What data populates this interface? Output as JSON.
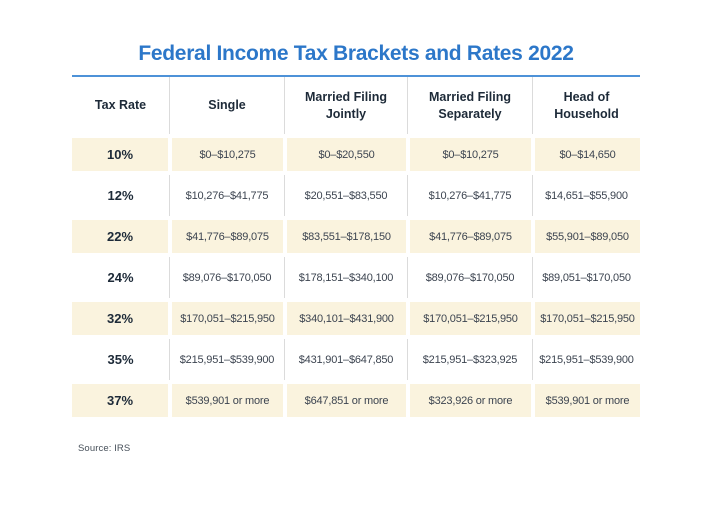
{
  "page": {
    "title": "Federal Income Tax Brackets and Rates 2022",
    "source_note": "Source: IRS"
  },
  "colors": {
    "title_blue": "#2C77C9",
    "rule_blue": "#4D92D8",
    "row_cream": "#FAF3DE",
    "grid_line": "#DBDBDB",
    "header_text": "#1D2A38",
    "cell_text": "#3C4450"
  },
  "table": {
    "columns": [
      "Tax Rate",
      "Single",
      "Married Filing Jointly",
      "Married Filing Separately",
      "Head of Household"
    ],
    "rows": [
      {
        "shaded": true,
        "cells": [
          "10%",
          "$0–$10,275",
          "$0–$20,550",
          "$0–$10,275",
          "$0–$14,650"
        ]
      },
      {
        "shaded": false,
        "cells": [
          "12%",
          "$10,276–$41,775",
          "$20,551–$83,550",
          "$10,276–$41,775",
          "$14,651–$55,900"
        ]
      },
      {
        "shaded": true,
        "cells": [
          "22%",
          "$41,776–$89,075",
          "$83,551–$178,150",
          "$41,776–$89,075",
          "$55,901–$89,050"
        ]
      },
      {
        "shaded": false,
        "cells": [
          "24%",
          "$89,076–$170,050",
          "$178,151–$340,100",
          "$89,076–$170,050",
          "$89,051–$170,050"
        ]
      },
      {
        "shaded": true,
        "cells": [
          "32%",
          "$170,051–$215,950",
          "$340,101–$431,900",
          "$170,051–$215,950",
          "$170,051–$215,950"
        ]
      },
      {
        "shaded": false,
        "cells": [
          "35%",
          "$215,951–$539,900",
          "$431,901–$647,850",
          "$215,951–$323,925",
          "$215,951–$539,900"
        ]
      },
      {
        "shaded": true,
        "cells": [
          "37%",
          "$539,901 or more",
          "$647,851 or more",
          "$323,926 or more",
          "$539,901 or more"
        ]
      }
    ]
  },
  "chart_data": {
    "type": "table",
    "title": "Federal Income Tax Brackets and Rates 2022",
    "columns": [
      "Tax Rate",
      "Single",
      "Married Filing Jointly",
      "Married Filing Separately",
      "Head of Household"
    ],
    "rows": [
      [
        "10%",
        "$0–$10,275",
        "$0–$20,550",
        "$0–$10,275",
        "$0–$14,650"
      ],
      [
        "12%",
        "$10,276–$41,775",
        "$20,551–$83,550",
        "$10,276–$41,775",
        "$14,651–$55,900"
      ],
      [
        "22%",
        "$41,776–$89,075",
        "$83,551–$178,150",
        "$41,776–$89,075",
        "$55,901–$89,050"
      ],
      [
        "24%",
        "$89,076–$170,050",
        "$178,151–$340,100",
        "$89,076–$170,050",
        "$89,051–$170,050"
      ],
      [
        "32%",
        "$170,051–$215,950",
        "$340,101–$431,900",
        "$170,051–$215,950",
        "$170,051–$215,950"
      ],
      [
        "35%",
        "$215,951–$539,900",
        "$431,901–$647,850",
        "$215,951–$323,925",
        "$215,951–$539,900"
      ],
      [
        "37%",
        "$539,901 or more",
        "$647,851 or more",
        "$323,926 or more",
        "$539,901 or more"
      ]
    ],
    "shaded_row_indices": [
      0,
      2,
      4,
      6
    ],
    "source": "Source: IRS",
    "layout": {
      "grid": "vertical separators on unshaded rows and header; shaded rows are cream bands with white gaps at column boundaries",
      "legend": "none"
    }
  }
}
